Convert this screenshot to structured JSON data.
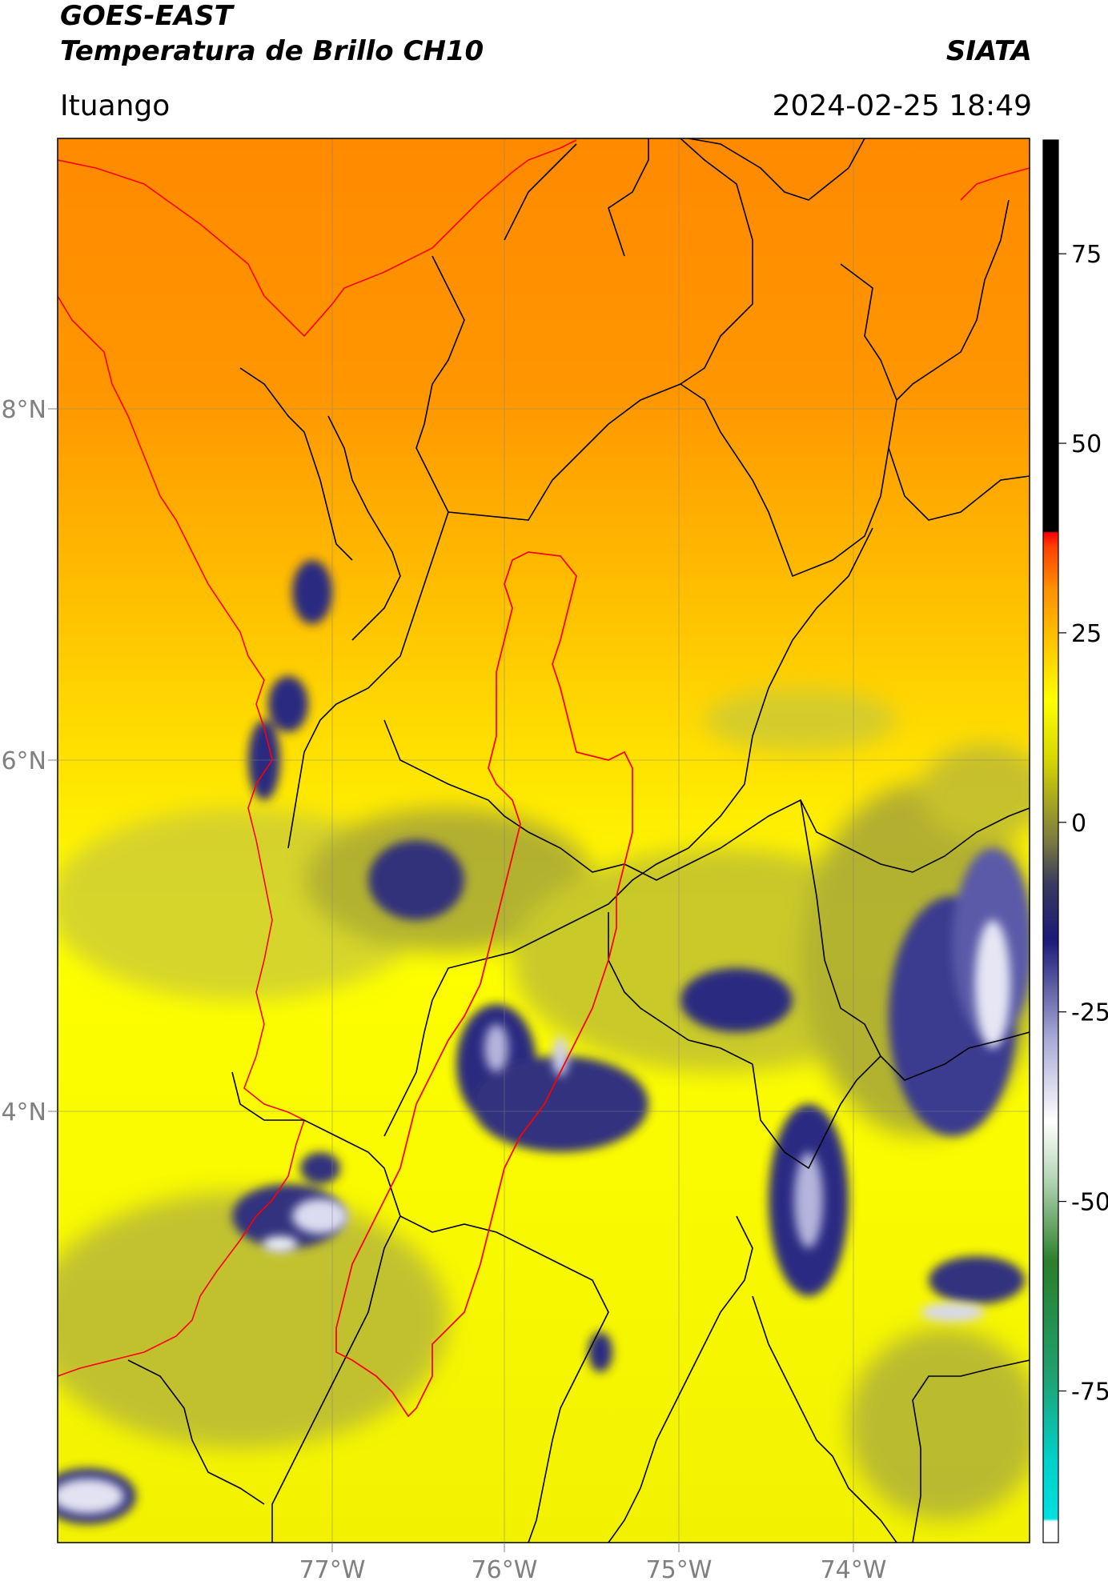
{
  "header": {
    "title_line1": "GOES-EAST",
    "title_line2": "Temperatura de Brillo CH10",
    "org": "SIATA",
    "region": "Ituango",
    "datetime": "2024-02-25 18:49"
  },
  "map": {
    "lon_ticks": [
      "77°W",
      "76°W",
      "75°W",
      "74°W"
    ],
    "lat_ticks": [
      "8°N",
      "6°N",
      "4°N"
    ],
    "extent": {
      "lon_min": -78.55,
      "lon_max": -73.0,
      "lat_min": 1.55,
      "lat_max": 9.55
    }
  },
  "colorbar": {
    "ticks": [
      "75",
      "50",
      "25",
      "0",
      "-25",
      "-50",
      "-75"
    ],
    "range": [
      -95,
      90
    ],
    "colors": {
      "cold_white": "#ffffff",
      "cyan": "#00d4d4",
      "teal": "#1a9a7a",
      "green": "#2a7a2a",
      "gray_white": "#e6e6e6",
      "light_blue": "#a9a9d8",
      "navy": "#1a1a7a",
      "olive": "#8a8a30",
      "yellow": "#ffff00",
      "orange": "#ff8c00",
      "red": "#ff0000",
      "black": "#000000"
    }
  }
}
